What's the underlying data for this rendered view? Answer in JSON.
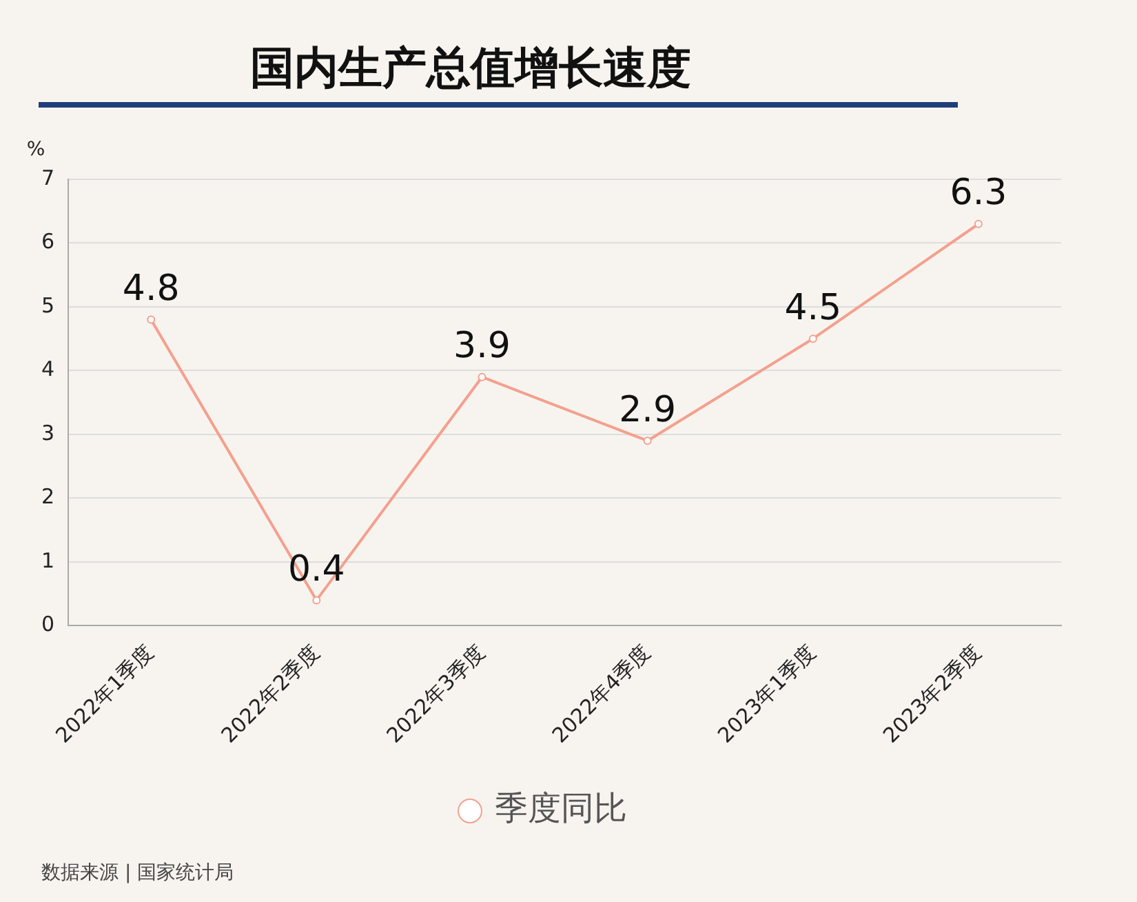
{
  "chart_data": {
    "type": "line",
    "title": "国内生产总值增长速度",
    "ylabel": "%",
    "categories": [
      "2022年1季度",
      "2022年2季度",
      "2022年3季度",
      "2022年4季度",
      "2023年1季度",
      "2023年2季度"
    ],
    "series": [
      {
        "name": "季度同比",
        "color": "#f4a08e",
        "values": [
          4.8,
          0.4,
          3.9,
          2.9,
          4.5,
          6.3
        ]
      }
    ],
    "ylim": [
      0,
      7
    ],
    "yticks": [
      0,
      1,
      2,
      3,
      4,
      5,
      6,
      7
    ],
    "grid": "y",
    "legend": "bottom",
    "marker": "circle",
    "data_labels": true,
    "annotations": [
      "数据来源 | 国家统计局"
    ]
  }
}
